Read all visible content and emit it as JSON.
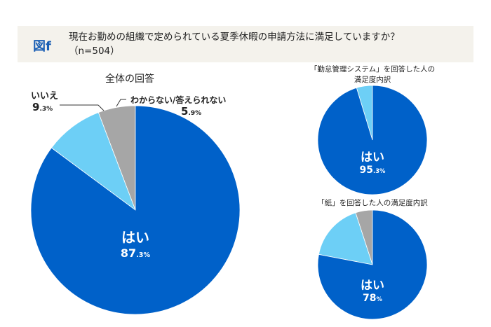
{
  "header": {
    "figure_label": "図f",
    "question": "現在お勤めの組織で定められている夏季休暇の申請方法に満足していますか？",
    "sample": "（n=504）"
  },
  "colors": {
    "yes": "#0061c9",
    "no": "#6dcff6",
    "unknown": "#a6a6a6"
  },
  "chart_data": [
    {
      "type": "pie",
      "title": "全体の回答",
      "slices": [
        {
          "label": "はい",
          "value": 87.3
        },
        {
          "label": "いいえ",
          "value": 9.3
        },
        {
          "label": "わからない/答えられない",
          "value": 5.9
        }
      ]
    },
    {
      "type": "pie",
      "title": "「勤怠管理システム」を回答した人の満足度内訳",
      "slices": [
        {
          "label": "はい",
          "value": 95.3
        },
        {
          "label": "いいえ",
          "value": 4.7
        },
        {
          "label": "わからない/答えられない",
          "value": 0
        }
      ]
    },
    {
      "type": "pie",
      "title": "「紙」を回答した人の満足度内訳",
      "slices": [
        {
          "label": "はい",
          "value": 78
        },
        {
          "label": "いいえ",
          "value": 17
        },
        {
          "label": "わからない/答えられない",
          "value": 5
        }
      ]
    }
  ],
  "labels": {
    "main_yes": "はい",
    "main_yes_int": "87",
    "main_yes_dec": ".3%",
    "main_no": "いいえ",
    "main_no_int": "9",
    "main_no_dec": ".3%",
    "main_unk": "わからない/答えられない",
    "main_unk_int": "5",
    "main_unk_dec": ".9%",
    "sys_title_1": "「勤怠管理システム」を回答した人の",
    "sys_title_2": "満足度内訳",
    "sys_yes": "はい",
    "sys_yes_int": "95",
    "sys_yes_dec": ".3%",
    "paper_title": "「紙」を回答した人の満足度内訳",
    "paper_yes": "はい",
    "paper_yes_int": "78",
    "paper_yes_dec": "%"
  }
}
